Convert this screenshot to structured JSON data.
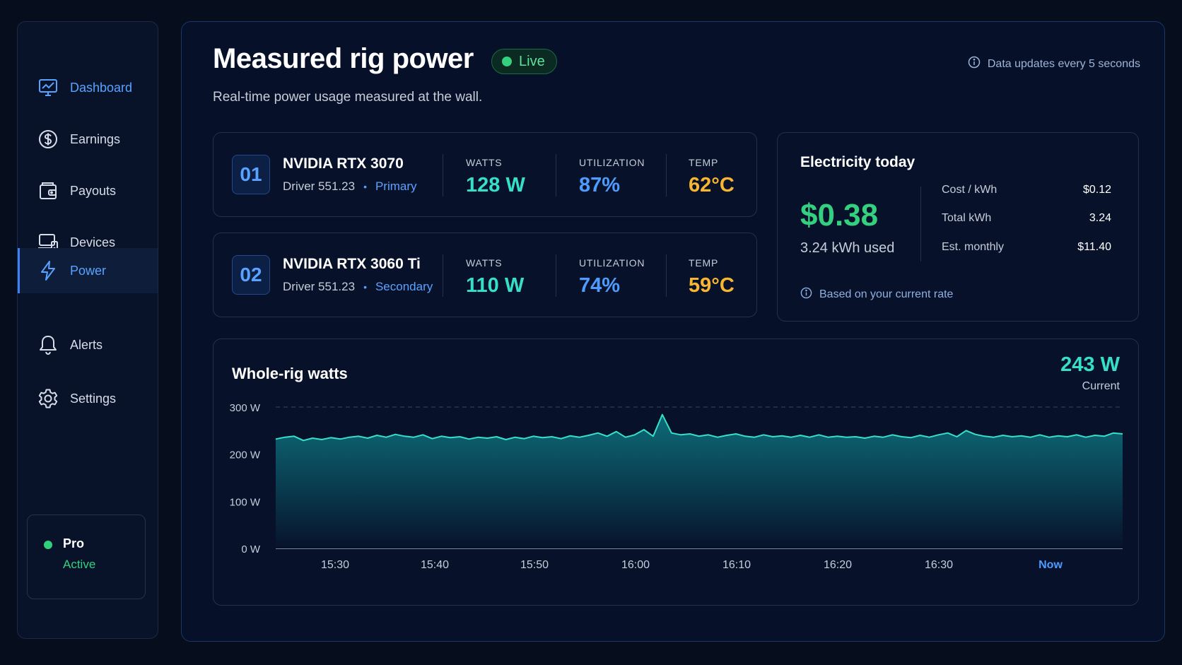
{
  "sidebar": {
    "items": [
      {
        "label": "Dashboard",
        "icon": "dashboard-icon"
      },
      {
        "label": "Earnings",
        "icon": "dollar-icon"
      },
      {
        "label": "Payouts",
        "icon": "wallet-icon"
      },
      {
        "label": "Devices",
        "icon": "devices-icon"
      },
      {
        "label": "Power",
        "icon": "lightning-icon"
      },
      {
        "label": "Alerts",
        "icon": "bell-icon"
      },
      {
        "label": "Settings",
        "icon": "gear-icon"
      }
    ],
    "plan": {
      "name": "Pro",
      "status": "Active"
    }
  },
  "header": {
    "title": "Measured rig power",
    "badge": "Live",
    "subtitle": "Real-time power usage measured at the wall.",
    "update_note": "Data updates every 5 seconds"
  },
  "gpus": [
    {
      "index": "01",
      "name": "NVIDIA RTX 3070",
      "driver": "Driver 551.23",
      "role": "Primary",
      "watts_label": "WATTS",
      "watts": "128 W",
      "util_label": "UTILIZATION",
      "util": "87%",
      "temp_label": "TEMP",
      "temp": "62°C"
    },
    {
      "index": "02",
      "name": "NVIDIA RTX 3060 Ti",
      "driver": "Driver 551.23",
      "role": "Secondary",
      "watts_label": "WATTS",
      "watts": "110 W",
      "util_label": "UTILIZATION",
      "util": "74%",
      "temp_label": "TEMP",
      "temp": "59°C"
    }
  ],
  "electricity": {
    "title": "Electricity today",
    "cost": "$0.38",
    "used": "3.24 kWh used",
    "rows": [
      {
        "label": "Cost / kWh",
        "value": "$0.12"
      },
      {
        "label": "Total kWh",
        "value": "3.24"
      },
      {
        "label": "Est. monthly",
        "value": "$11.40"
      }
    ],
    "note": "Based on your current rate"
  },
  "chart": {
    "title": "Whole-rig watts",
    "current_value": "243 W",
    "current_label": "Current"
  },
  "colors": {
    "accent_blue": "#4e9cff",
    "accent_teal": "#36e0c8",
    "accent_green": "#35d07f",
    "accent_amber": "#f7b531"
  },
  "chart_data": {
    "type": "area",
    "title": "Whole-rig watts",
    "ylim": [
      0,
      300
    ],
    "y_ticks": [
      "0 W",
      "100 W",
      "200 W",
      "300 W"
    ],
    "x_ticks": [
      "15:30",
      "15:40",
      "15:50",
      "16:00",
      "16:10",
      "16:20",
      "16:30",
      "Now"
    ],
    "grid": "horizontal-dashed",
    "series": [
      {
        "values": [
          232,
          236,
          238,
          229,
          234,
          231,
          235,
          232,
          236,
          238,
          234,
          240,
          236,
          242,
          238,
          236,
          241,
          233,
          238,
          235,
          237,
          232,
          236,
          234,
          237,
          231,
          236,
          233,
          238,
          235,
          237,
          233,
          239,
          236,
          240,
          245,
          238,
          248,
          236,
          241,
          252,
          238,
          284,
          245,
          241,
          243,
          238,
          241,
          236,
          240,
          243,
          238,
          236,
          241,
          237,
          239,
          236,
          240,
          236,
          241,
          236,
          238,
          236,
          237,
          234,
          238,
          236,
          241,
          237,
          235,
          240,
          236,
          241,
          245,
          237,
          250,
          242,
          238,
          236,
          240,
          237,
          239,
          236,
          241,
          236,
          239,
          237,
          241,
          236,
          240,
          238,
          245,
          243
        ]
      }
    ]
  }
}
